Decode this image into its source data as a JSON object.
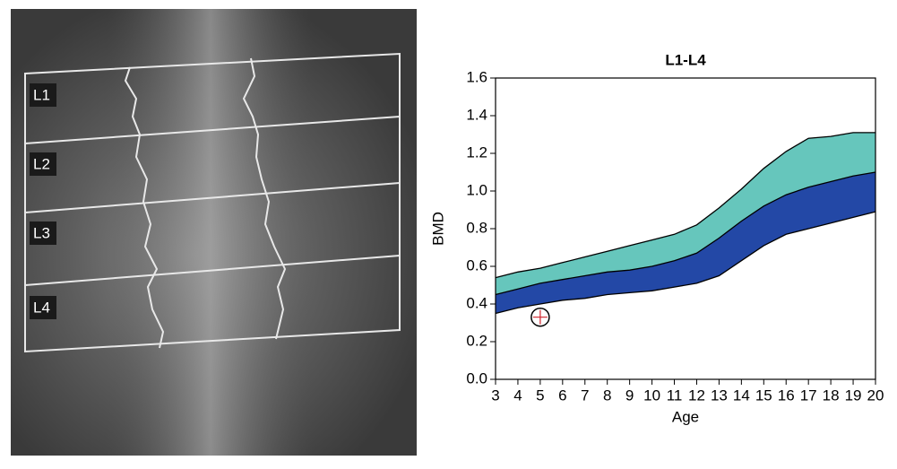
{
  "image": {
    "labels": [
      "L1",
      "L2",
      "L3",
      "L4"
    ]
  },
  "chart_data": {
    "type": "band-area",
    "title": "L1-L4",
    "x_label": "Age",
    "y_label": "BMD",
    "x": [
      3,
      4,
      5,
      6,
      7,
      8,
      9,
      10,
      11,
      12,
      13,
      14,
      15,
      16,
      17,
      18,
      19,
      20
    ],
    "series": [
      {
        "color": "#000000",
        "values": [
          0.35,
          0.38,
          0.4,
          0.42,
          0.43,
          0.45,
          0.46,
          0.47,
          0.49,
          0.51,
          0.55,
          0.63,
          0.71,
          0.77,
          0.8,
          0.83,
          0.86,
          0.89
        ]
      },
      {
        "color": "#2348a6",
        "values": [
          0.45,
          0.48,
          0.51,
          0.53,
          0.55,
          0.57,
          0.58,
          0.6,
          0.63,
          0.67,
          0.75,
          0.84,
          0.92,
          0.98,
          1.02,
          1.05,
          1.08,
          1.1
        ]
      },
      {
        "color": "#66c6bc",
        "values": [
          0.54,
          0.57,
          0.59,
          0.62,
          0.65,
          0.68,
          0.71,
          0.74,
          0.77,
          0.82,
          0.91,
          1.01,
          1.12,
          1.21,
          1.28,
          1.29,
          1.31,
          1.31
        ]
      }
    ],
    "marker": {
      "x": 5,
      "y": 0.33,
      "color": "#d0202a"
    },
    "xlim": [
      3,
      20
    ],
    "xticks": [
      3,
      4,
      5,
      6,
      7,
      8,
      9,
      10,
      11,
      12,
      13,
      14,
      15,
      16,
      17,
      18,
      19,
      20
    ],
    "ylim": [
      0,
      1.6
    ],
    "yticks": [
      {
        "value": 0,
        "label": "0.0"
      },
      0.2,
      0.4,
      0.6,
      0.8,
      {
        "value": 1,
        "label": "1.0"
      },
      1.2,
      1.4,
      1.6
    ]
  }
}
